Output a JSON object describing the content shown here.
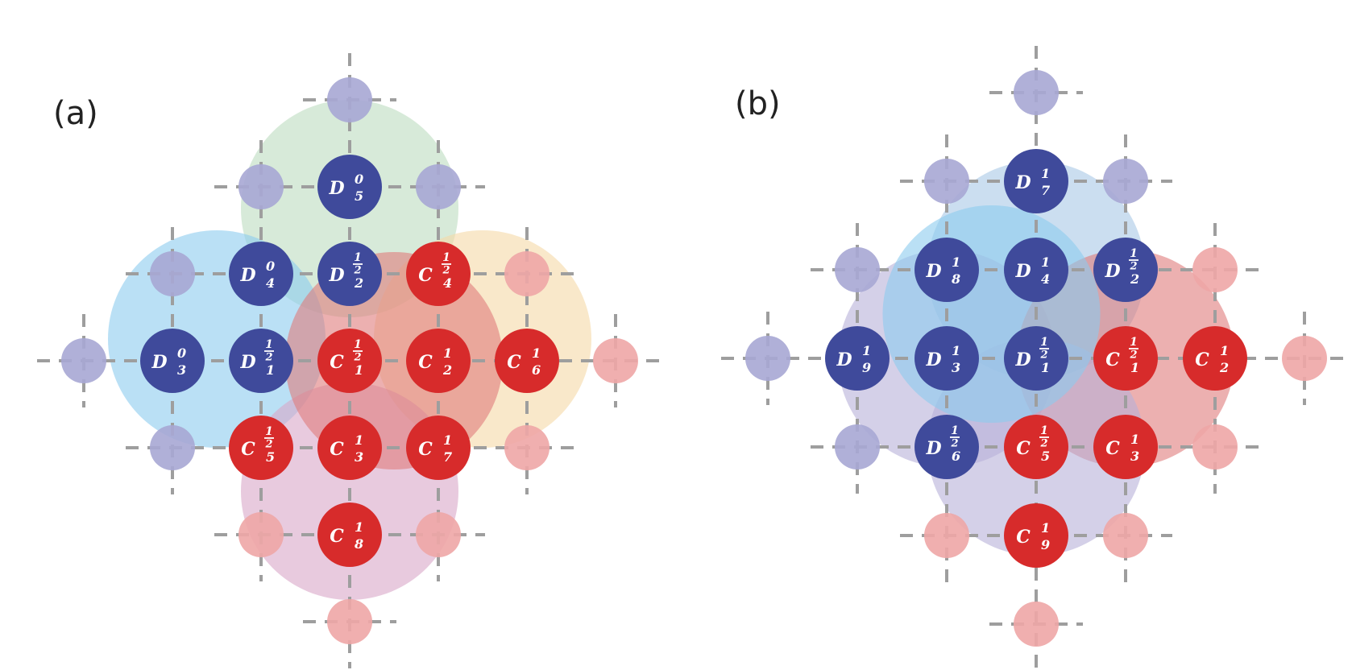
{
  "colors": {
    "data_node": "#3f4a9b",
    "check_node": "#d72b2b",
    "data_ghost": "#a7a7d4",
    "check_ghost": "#eea6a6",
    "region_green": "#bcdcc0",
    "region_blue": "#8ccbee",
    "region_orange": "#f5d9a6",
    "region_pink": "#d8a6c8",
    "region_red": "#e07b7b",
    "region_lightblue": "#a9c8e6",
    "region_purple": "#b8b0d8",
    "grid": "#9e9e9e"
  },
  "panels": [
    {
      "label": "(a)",
      "regions": [
        {
          "color": "region_green",
          "cell": [
            0,
            -1.75
          ]
        },
        {
          "color": "region_blue",
          "cell": [
            -1.5,
            -0.25
          ]
        },
        {
          "color": "region_orange",
          "cell": [
            1.5,
            -0.25
          ]
        },
        {
          "color": "region_pink",
          "cell": [
            0,
            1.5
          ]
        },
        {
          "color": "region_red",
          "cell": [
            0.5,
            0
          ]
        }
      ],
      "nodes": [
        {
          "kind": "data",
          "base": "D",
          "sub": "5",
          "sup": "0",
          "cell": [
            0,
            -2
          ]
        },
        {
          "kind": "data",
          "base": "D",
          "sub": "4",
          "sup": "0",
          "cell": [
            -1,
            -1
          ]
        },
        {
          "kind": "data",
          "base": "D",
          "sub": "2",
          "sup": "1/2",
          "cell": [
            0,
            -1
          ]
        },
        {
          "kind": "check",
          "base": "C",
          "sub": "4",
          "sup": "1/2",
          "cell": [
            1,
            -1
          ]
        },
        {
          "kind": "data",
          "base": "D",
          "sub": "3",
          "sup": "0",
          "cell": [
            -2,
            0
          ]
        },
        {
          "kind": "data",
          "base": "D",
          "sub": "1",
          "sup": "1/2",
          "cell": [
            -1,
            0
          ]
        },
        {
          "kind": "check",
          "base": "C",
          "sub": "1",
          "sup": "1/2",
          "cell": [
            0,
            0
          ]
        },
        {
          "kind": "check",
          "base": "C",
          "sub": "2",
          "sup": "1",
          "cell": [
            1,
            0
          ]
        },
        {
          "kind": "check",
          "base": "C",
          "sub": "6",
          "sup": "1",
          "cell": [
            2,
            0
          ]
        },
        {
          "kind": "check",
          "base": "C",
          "sub": "5",
          "sup": "1/2",
          "cell": [
            -1,
            1
          ]
        },
        {
          "kind": "check",
          "base": "C",
          "sub": "3",
          "sup": "1",
          "cell": [
            0,
            1
          ]
        },
        {
          "kind": "check",
          "base": "C",
          "sub": "7",
          "sup": "1",
          "cell": [
            1,
            1
          ]
        },
        {
          "kind": "check",
          "base": "C",
          "sub": "8",
          "sup": "1",
          "cell": [
            0,
            2
          ]
        }
      ],
      "ghosts": [
        {
          "kind": "data",
          "cell": [
            0,
            -3
          ]
        },
        {
          "kind": "data",
          "cell": [
            -1,
            -2
          ]
        },
        {
          "kind": "data",
          "cell": [
            1,
            -2
          ]
        },
        {
          "kind": "data",
          "cell": [
            -2,
            -1
          ]
        },
        {
          "kind": "check",
          "cell": [
            2,
            -1
          ]
        },
        {
          "kind": "data",
          "cell": [
            -3,
            0
          ]
        },
        {
          "kind": "check",
          "cell": [
            3,
            0
          ]
        },
        {
          "kind": "data",
          "cell": [
            -2,
            1
          ]
        },
        {
          "kind": "check",
          "cell": [
            2,
            1
          ]
        },
        {
          "kind": "check",
          "cell": [
            -1,
            2
          ]
        },
        {
          "kind": "check",
          "cell": [
            1,
            2
          ]
        },
        {
          "kind": "check",
          "cell": [
            0,
            3
          ]
        }
      ]
    },
    {
      "label": "(b)",
      "regions": [
        {
          "color": "region_lightblue",
          "cell": [
            0,
            -1
          ]
        },
        {
          "color": "region_purple",
          "cell": [
            -1,
            0
          ]
        },
        {
          "color": "region_red",
          "cell": [
            1,
            0
          ]
        },
        {
          "color": "region_purple",
          "cell": [
            0,
            1
          ]
        },
        {
          "color": "region_blue",
          "cell": [
            -0.5,
            -0.5
          ]
        }
      ],
      "nodes": [
        {
          "kind": "data",
          "base": "D",
          "sub": "7",
          "sup": "1",
          "cell": [
            0,
            -2
          ]
        },
        {
          "kind": "data",
          "base": "D",
          "sub": "8",
          "sup": "1",
          "cell": [
            -1,
            -1
          ]
        },
        {
          "kind": "data",
          "base": "D",
          "sub": "4",
          "sup": "1",
          "cell": [
            0,
            -1
          ]
        },
        {
          "kind": "data",
          "base": "D",
          "sub": "2",
          "sup": "1/2",
          "cell": [
            1,
            -1
          ]
        },
        {
          "kind": "data",
          "base": "D",
          "sub": "9",
          "sup": "1",
          "cell": [
            -2,
            0
          ]
        },
        {
          "kind": "data",
          "base": "D",
          "sub": "3",
          "sup": "1",
          "cell": [
            -1,
            0
          ]
        },
        {
          "kind": "data",
          "base": "D",
          "sub": "1",
          "sup": "1/2",
          "cell": [
            0,
            0
          ]
        },
        {
          "kind": "check",
          "base": "C",
          "sub": "1",
          "sup": "1/2",
          "cell": [
            1,
            0
          ]
        },
        {
          "kind": "check",
          "base": "C",
          "sub": "2",
          "sup": "1",
          "cell": [
            2,
            0
          ]
        },
        {
          "kind": "data",
          "base": "D",
          "sub": "6",
          "sup": "1/2",
          "cell": [
            -1,
            1
          ]
        },
        {
          "kind": "check",
          "base": "C",
          "sub": "5",
          "sup": "1/2",
          "cell": [
            0,
            1
          ]
        },
        {
          "kind": "check",
          "base": "C",
          "sub": "3",
          "sup": "1",
          "cell": [
            1,
            1
          ]
        },
        {
          "kind": "check",
          "base": "C",
          "sub": "9",
          "sup": "1",
          "cell": [
            0,
            2
          ]
        }
      ],
      "ghosts": [
        {
          "kind": "data",
          "cell": [
            0,
            -3
          ]
        },
        {
          "kind": "data",
          "cell": [
            -1,
            -2
          ]
        },
        {
          "kind": "data",
          "cell": [
            1,
            -2
          ]
        },
        {
          "kind": "data",
          "cell": [
            -2,
            -1
          ]
        },
        {
          "kind": "check",
          "cell": [
            2,
            -1
          ]
        },
        {
          "kind": "data",
          "cell": [
            -3,
            0
          ]
        },
        {
          "kind": "check",
          "cell": [
            3,
            0
          ]
        },
        {
          "kind": "data",
          "cell": [
            -2,
            1
          ]
        },
        {
          "kind": "check",
          "cell": [
            2,
            1
          ]
        },
        {
          "kind": "check",
          "cell": [
            -1,
            2
          ]
        },
        {
          "kind": "check",
          "cell": [
            1,
            2
          ]
        },
        {
          "kind": "check",
          "cell": [
            0,
            3
          ]
        }
      ]
    }
  ]
}
